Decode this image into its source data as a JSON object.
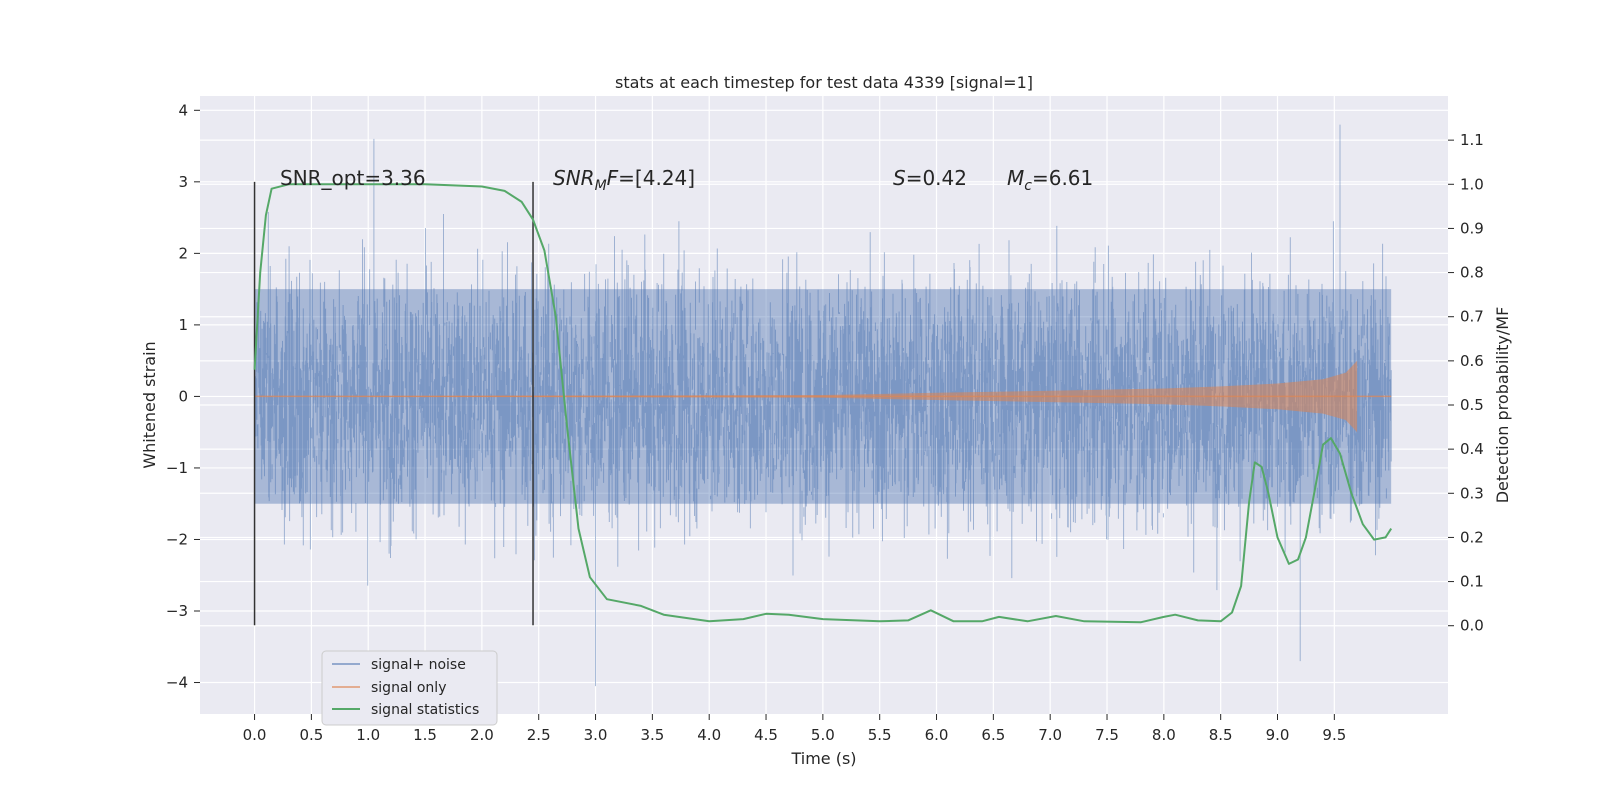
{
  "chart_data": {
    "type": "line",
    "title": "stats at each timestep for test data 4339 [signal=1]",
    "xlabel": "Time (s)",
    "ylabel": "Whitened strain",
    "y2label": "Detection probability/MF",
    "xlim": [
      -0.48,
      10.5
    ],
    "ylim": [
      -4.44,
      4.2
    ],
    "y2lim": [
      -0.2,
      1.2
    ],
    "x_ticks": [
      "0.0",
      "0.5",
      "1.0",
      "1.5",
      "2.0",
      "2.5",
      "3.0",
      "3.5",
      "4.0",
      "4.5",
      "5.0",
      "5.5",
      "6.0",
      "6.5",
      "7.0",
      "7.5",
      "8.0",
      "8.5",
      "9.0",
      "9.5"
    ],
    "y_ticks": [
      "4",
      "3",
      "2",
      "1",
      "0",
      "−1",
      "−2",
      "−3",
      "−4"
    ],
    "y2_ticks": [
      "1.1",
      "1.0",
      "0.9",
      "0.8",
      "0.7",
      "0.6",
      "0.5",
      "0.4",
      "0.3",
      "0.2",
      "0.1",
      "0.0"
    ],
    "grid": true,
    "legend_position": "lower-left",
    "colors": {
      "background": "#eaeaf2",
      "grid": "#ffffff",
      "signal_noise": "#4c72b0",
      "signal_only": "#dd8452",
      "statistics": "#55a868",
      "marker": "#333333"
    },
    "annotations": {
      "snr_opt": "SNR_opt=3.36",
      "snr_mf_italic": "SNR",
      "snr_mf_sub": "M",
      "snr_mf_italic2": "F",
      "snr_mf_value": "=[4.24]",
      "s_italic": "S",
      "s_value": "=0.42",
      "mc_italic": "M",
      "mc_sub": "c",
      "mc_value": "=6.61"
    },
    "vertical_markers": [
      0.0,
      2.45
    ],
    "series": [
      {
        "name": "signal+ noise",
        "x_range": [
          0.0,
          10.0
        ],
        "approx_band": [
          -1.5,
          1.5
        ],
        "extremes": [
          [
            1.05,
            3.6
          ],
          [
            3.0,
            -4.05
          ],
          [
            9.2,
            -3.7
          ],
          [
            9.55,
            3.8
          ]
        ]
      },
      {
        "name": "signal only",
        "x_range": [
          0.0,
          9.7
        ],
        "envelope": [
          [
            0.0,
            0.0
          ],
          [
            5.0,
            0.02
          ],
          [
            6.0,
            0.05
          ],
          [
            7.0,
            0.08
          ],
          [
            8.0,
            0.11
          ],
          [
            8.5,
            0.14
          ],
          [
            9.0,
            0.18
          ],
          [
            9.4,
            0.24
          ],
          [
            9.6,
            0.33
          ],
          [
            9.7,
            0.5
          ]
        ]
      },
      {
        "name": "signal statistics",
        "axis": "right",
        "points": [
          [
            0.0,
            0.58
          ],
          [
            0.05,
            0.8
          ],
          [
            0.1,
            0.93
          ],
          [
            0.15,
            0.99
          ],
          [
            0.3,
            1.0
          ],
          [
            1.0,
            1.0
          ],
          [
            1.5,
            1.0
          ],
          [
            2.0,
            0.995
          ],
          [
            2.2,
            0.985
          ],
          [
            2.35,
            0.96
          ],
          [
            2.45,
            0.92
          ],
          [
            2.55,
            0.85
          ],
          [
            2.65,
            0.7
          ],
          [
            2.75,
            0.45
          ],
          [
            2.85,
            0.22
          ],
          [
            2.95,
            0.11
          ],
          [
            3.1,
            0.06
          ],
          [
            3.4,
            0.045
          ],
          [
            3.6,
            0.025
          ],
          [
            4.0,
            0.01
          ],
          [
            4.3,
            0.015
          ],
          [
            4.5,
            0.027
          ],
          [
            4.7,
            0.025
          ],
          [
            5.0,
            0.015
          ],
          [
            5.5,
            0.01
          ],
          [
            5.75,
            0.012
          ],
          [
            5.95,
            0.035
          ],
          [
            6.15,
            0.01
          ],
          [
            6.4,
            0.01
          ],
          [
            6.55,
            0.02
          ],
          [
            6.8,
            0.01
          ],
          [
            7.05,
            0.022
          ],
          [
            7.3,
            0.01
          ],
          [
            7.8,
            0.008
          ],
          [
            8.0,
            0.02
          ],
          [
            8.1,
            0.025
          ],
          [
            8.3,
            0.012
          ],
          [
            8.5,
            0.01
          ],
          [
            8.6,
            0.03
          ],
          [
            8.68,
            0.09
          ],
          [
            8.75,
            0.28
          ],
          [
            8.8,
            0.37
          ],
          [
            8.86,
            0.36
          ],
          [
            8.92,
            0.3
          ],
          [
            9.0,
            0.2
          ],
          [
            9.1,
            0.14
          ],
          [
            9.18,
            0.15
          ],
          [
            9.25,
            0.2
          ],
          [
            9.33,
            0.31
          ],
          [
            9.4,
            0.41
          ],
          [
            9.47,
            0.425
          ],
          [
            9.55,
            0.39
          ],
          [
            9.65,
            0.3
          ],
          [
            9.75,
            0.23
          ],
          [
            9.85,
            0.195
          ],
          [
            9.95,
            0.2
          ],
          [
            10.0,
            0.22
          ]
        ]
      }
    ]
  }
}
